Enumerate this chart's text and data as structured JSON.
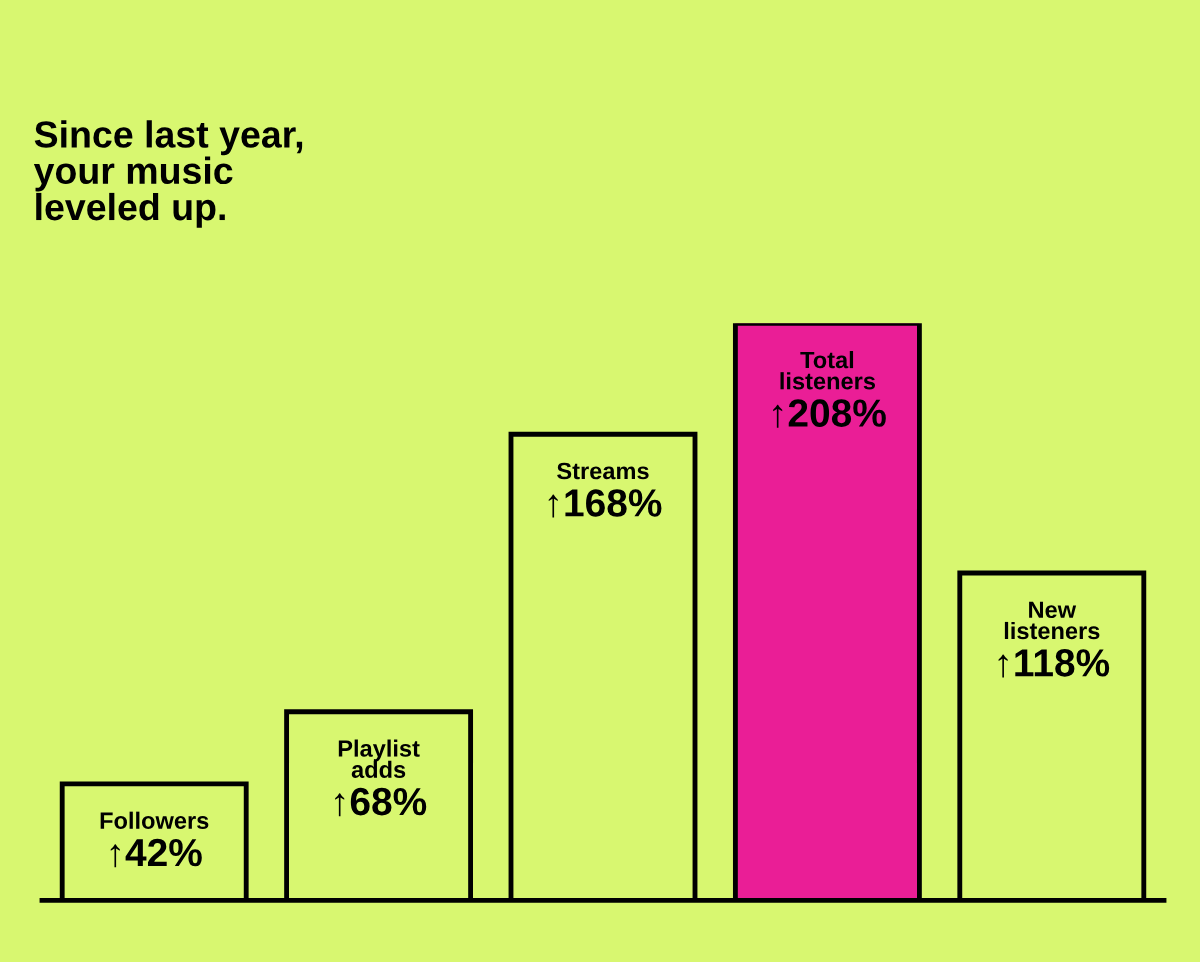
{
  "chart_data": {
    "type": "bar",
    "title": "Since last year,\nyour music\nleveled up.",
    "categories": [
      "Followers",
      "Playlist\nadds",
      "Streams",
      "Total\nlisteners",
      "New\nlisteners"
    ],
    "values": [
      42,
      68,
      168,
      208,
      118
    ],
    "colors": [
      "#d8f770",
      "#d8f770",
      "#d8f770",
      "#ea1e96",
      "#d8f770"
    ],
    "value_labels": [
      "↑42%",
      "↑68%",
      "↑168%",
      "↑208%",
      "↑118%"
    ],
    "tick_labels": false
  }
}
